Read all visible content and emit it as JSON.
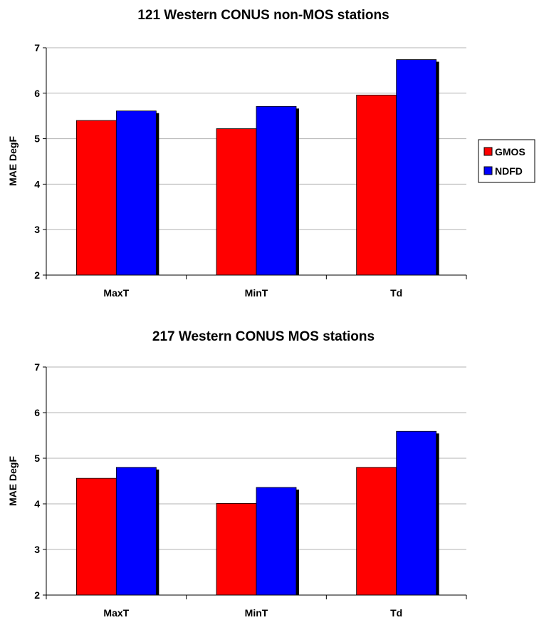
{
  "chart_data": [
    {
      "type": "bar",
      "title": "121 Western CONUS non-MOS stations",
      "xlabel": "",
      "ylabel": "MAE DegF",
      "ylim": [
        2,
        7
      ],
      "yticks": [
        "2",
        "3",
        "4",
        "5",
        "6",
        "7"
      ],
      "categories": [
        "MaxT",
        "MinT",
        "Td"
      ],
      "series": [
        {
          "name": "GMOS",
          "values": [
            5.4,
            5.22,
            5.96
          ]
        },
        {
          "name": "NDFD",
          "values": [
            5.61,
            5.71,
            6.74
          ]
        }
      ],
      "grid": true,
      "legend": "right"
    },
    {
      "type": "bar",
      "title": "217 Western CONUS MOS stations",
      "xlabel": "",
      "ylabel": "MAE DegF",
      "ylim": [
        2,
        7
      ],
      "yticks": [
        "2",
        "3",
        "4",
        "5",
        "6",
        "7"
      ],
      "categories": [
        "MaxT",
        "MinT",
        "Td"
      ],
      "series": [
        {
          "name": "GMOS",
          "values": [
            4.56,
            4.01,
            4.8
          ]
        },
        {
          "name": "NDFD",
          "values": [
            4.8,
            4.36,
            5.59
          ]
        }
      ],
      "grid": true,
      "legend": "none"
    }
  ],
  "colors": {
    "GMOS": "#ff0000",
    "NDFD": "#0000ff",
    "shadow": "#000000",
    "grid": "#b3b3b3"
  }
}
